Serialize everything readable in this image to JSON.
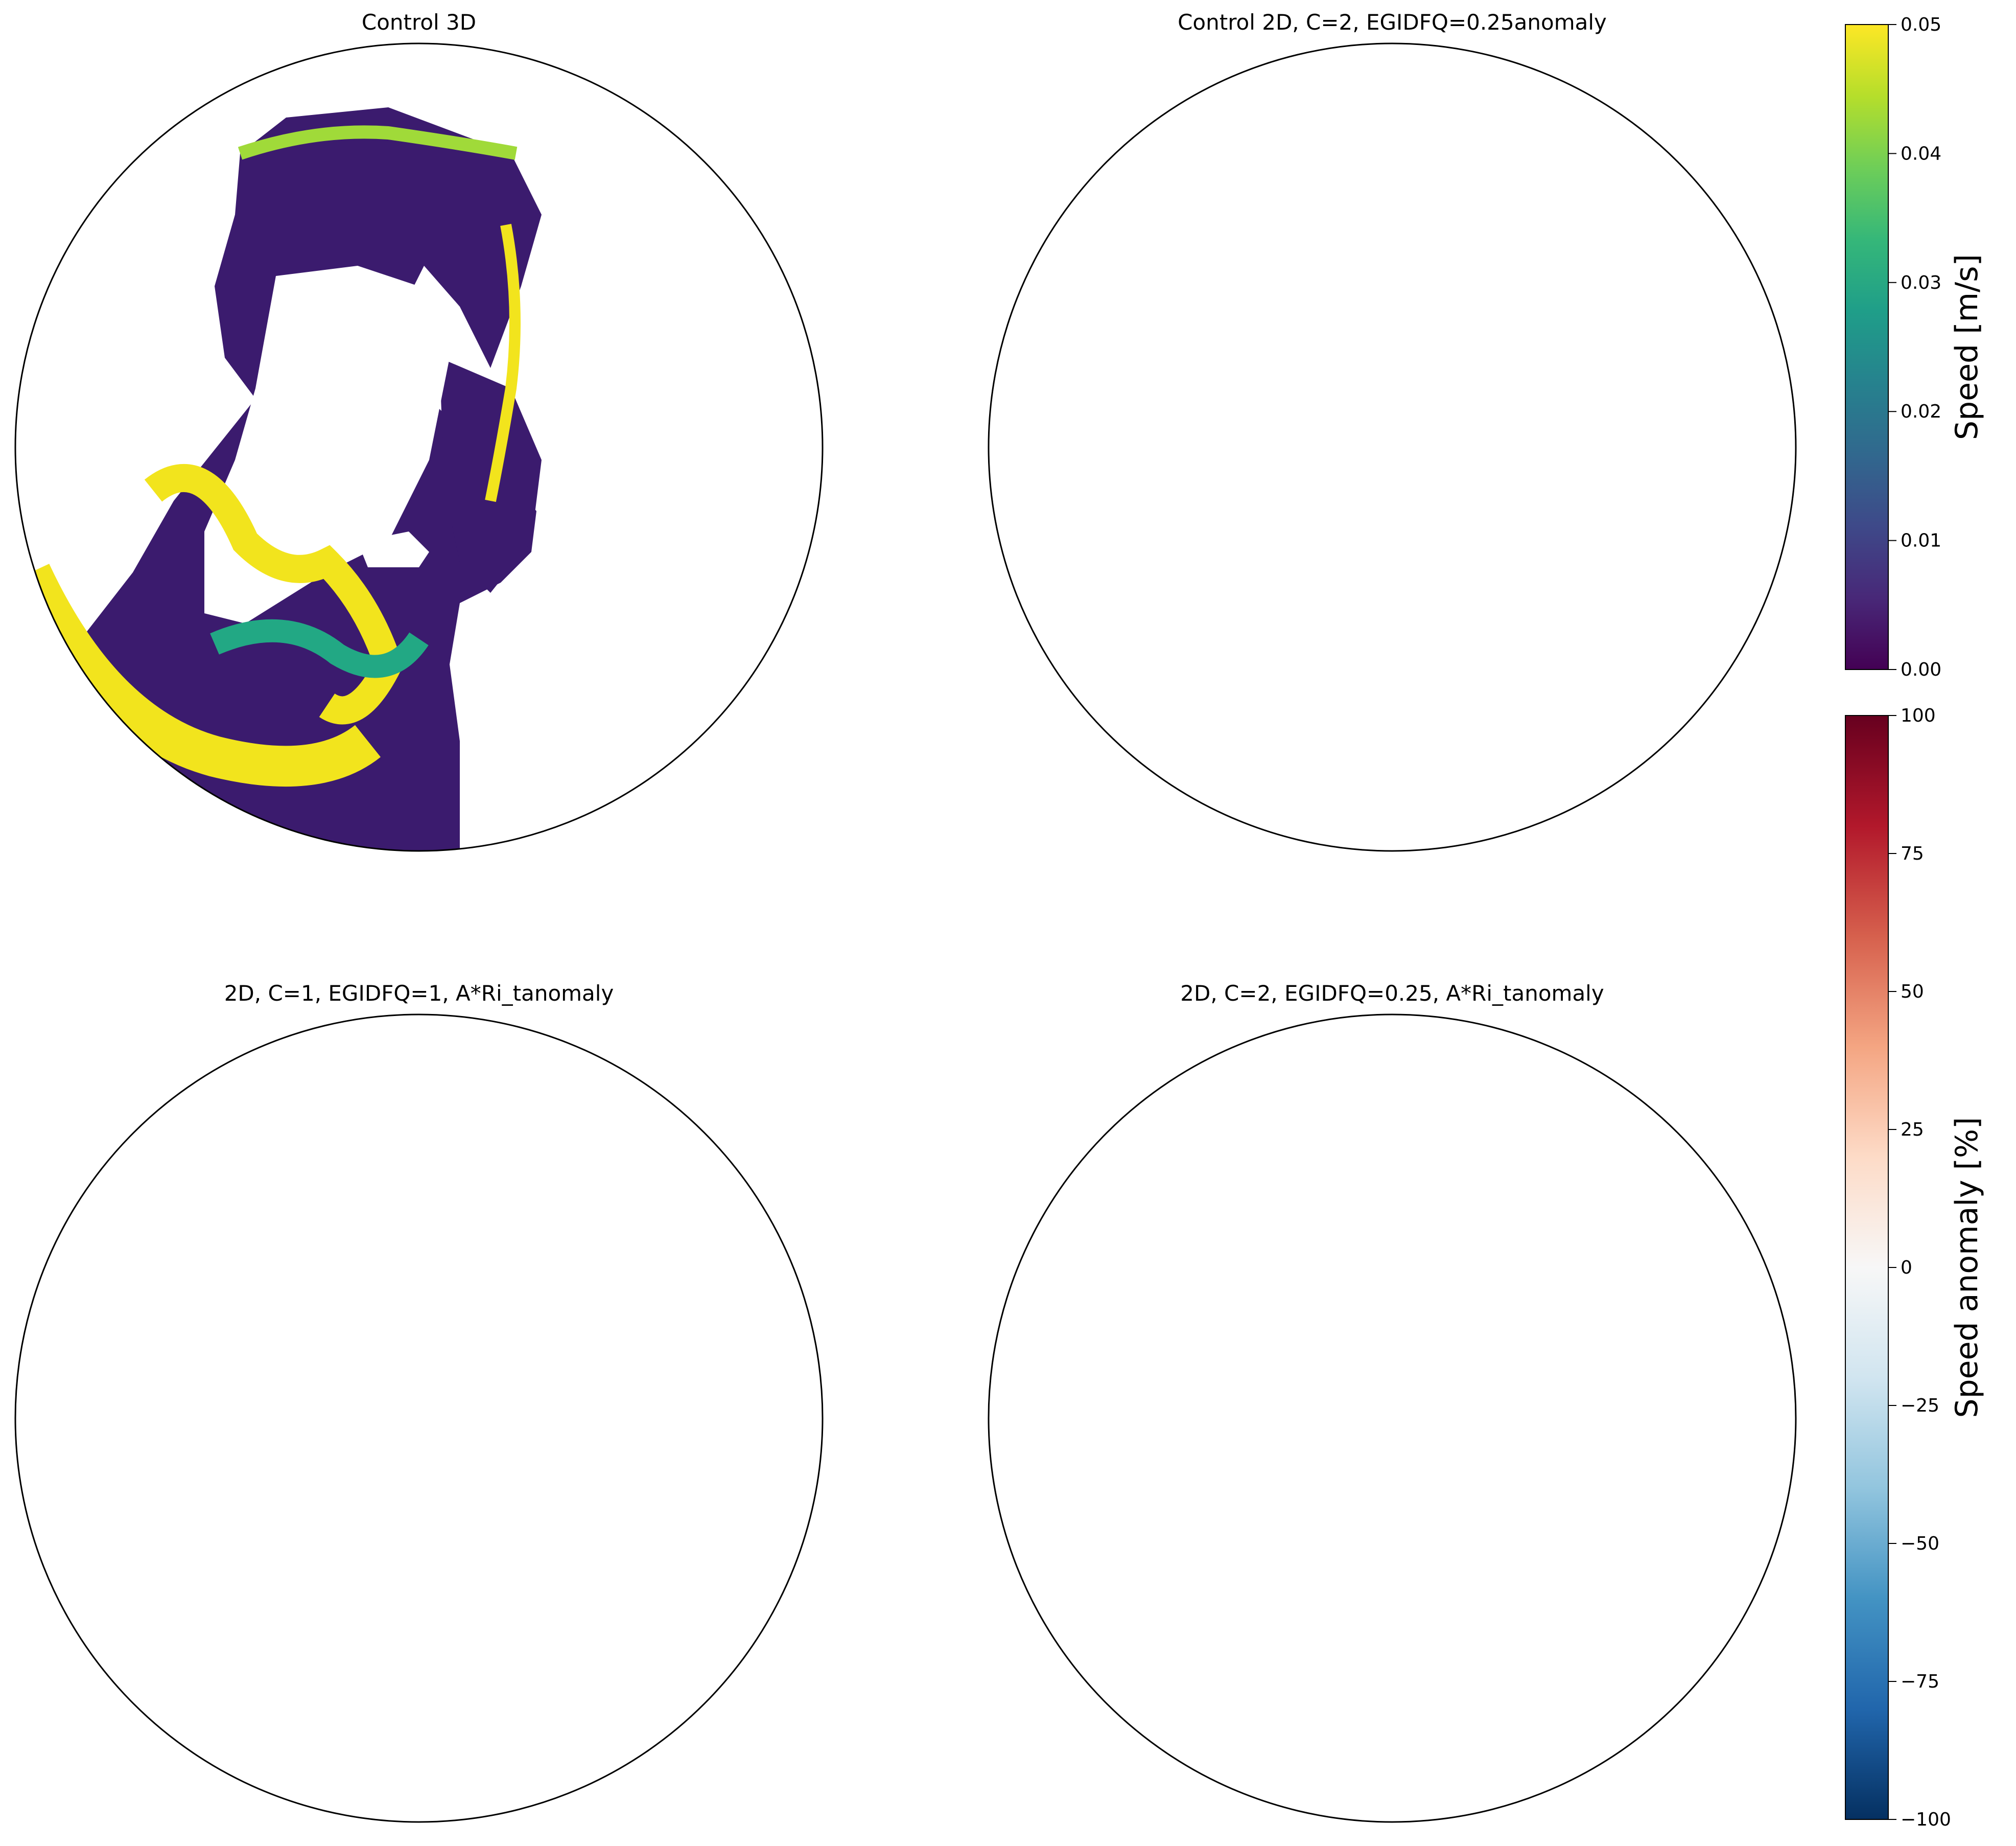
{
  "chart_data": {
    "type": "heatmap",
    "projection": "orthographic (polar, North Atlantic / Arctic view)",
    "panels": [
      {
        "id": "control-3d",
        "title": "Control 3D",
        "variable": "speed",
        "units": "m/s",
        "colormap": "viridis",
        "contours": false
      },
      {
        "id": "control-2d-anomaly",
        "title": "Control 2D, C=2, EGIDFQ=0.25anomaly",
        "variable": "speed anomaly",
        "units": "%",
        "colormap": "RdBu_r",
        "contours": true
      },
      {
        "id": "c1-egidfq1-anomaly",
        "title": "2D, C=1, EGIDFQ=1, A*Ri_tanomaly",
        "variable": "speed anomaly",
        "units": "%",
        "colormap": "RdBu_r",
        "contours": true
      },
      {
        "id": "c2-egidfq025-anomaly",
        "title": "2D, C=2, EGIDFQ=0.25, A*Ri_tanomaly",
        "variable": "speed anomaly",
        "units": "%",
        "colormap": "RdBu_r",
        "contours": true
      }
    ],
    "colorbars": [
      {
        "id": "speed",
        "label": "Speed [m/s]",
        "colormap": "viridis",
        "range": [
          0.0,
          0.05
        ],
        "ticks": [
          0.0,
          0.01,
          0.02,
          0.03,
          0.04,
          0.05
        ],
        "tick_labels": [
          "0.00",
          "0.01",
          "0.02",
          "0.03",
          "0.04",
          "0.05"
        ],
        "colors": [
          "#440154",
          "#482878",
          "#3e4989",
          "#31688e",
          "#26828e",
          "#1f9e89",
          "#35b779",
          "#6ece58",
          "#b5de2b",
          "#fde725"
        ]
      },
      {
        "id": "anomaly",
        "label": "Speed anomaly [%]",
        "colormap": "RdBu_r",
        "range": [
          -100,
          100
        ],
        "ticks": [
          -100,
          -75,
          -50,
          -25,
          0,
          25,
          50,
          75,
          100
        ],
        "tick_labels": [
          "−100",
          "−75",
          "−50",
          "−25",
          "0",
          "25",
          "50",
          "75",
          "100"
        ],
        "colors": [
          "#053061",
          "#2166ac",
          "#4393c3",
          "#92c5de",
          "#d1e5f0",
          "#f7f7f7",
          "#fddbc7",
          "#f4a582",
          "#d6604d",
          "#b2182b",
          "#67001f"
        ]
      }
    ],
    "field_colors": {
      "land": "#ffffff",
      "ocean_low": "#3b1b6e",
      "jet_high": "#f2e41d",
      "contour": "#000000"
    }
  }
}
